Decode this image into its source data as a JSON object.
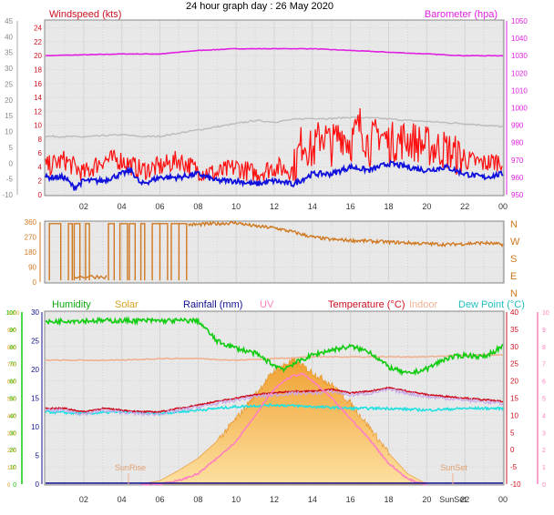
{
  "header": {
    "title": "24 hour graph day : 26 May 2020"
  },
  "colors": {
    "wind_avg": "#1010dd",
    "wind_gust": "#ff1010",
    "temp_gray": "#bbbbbb",
    "barometer": "#e020e0",
    "direction": "#d07820",
    "humidity": "#10cc10",
    "solar": "#f5b040",
    "rainfall": "#101090",
    "uv": "#ff80c0",
    "temperature": "#cc1020",
    "indoor": "#f0b090",
    "dewpoint": "#20e0e0",
    "grid": "#d8d8d8",
    "panel_bg": "#e8e8e8"
  },
  "chart_data": [
    {
      "type": "line",
      "panel": "wind",
      "x_ticks": [
        "02",
        "04",
        "06",
        "08",
        "10",
        "12",
        "14",
        "16",
        "18",
        "20",
        "22",
        "00"
      ],
      "left_axis": {
        "label": "Windspeed (kts)",
        "ticks": [
          "24",
          "22",
          "20",
          "18",
          "16",
          "14",
          "12",
          "10",
          "8",
          "6",
          "4",
          "2",
          "0"
        ],
        "ylim": [
          0,
          25
        ]
      },
      "outer_left_axis": {
        "ticks": [
          "45",
          "40",
          "35",
          "30",
          "25",
          "20",
          "15",
          "10",
          "5",
          "0",
          "-5",
          "-10"
        ],
        "ylim": [
          -10,
          45
        ]
      },
      "right_axis": {
        "label": "Barometer (hpa)",
        "ticks": [
          "1050",
          "1040",
          "1030",
          "1020",
          "1010",
          "1000",
          "990",
          "980",
          "970",
          "960",
          "950"
        ],
        "ylim": [
          950,
          1050
        ]
      },
      "series": [
        {
          "name": "Barometer",
          "hour": [
            0,
            4,
            6,
            8,
            10,
            12,
            14,
            16,
            18,
            20,
            22,
            24
          ],
          "values": [
            1030,
            1031,
            1031,
            1033,
            1034,
            1034,
            1034,
            1033,
            1032,
            1031,
            1030,
            1030
          ]
        },
        {
          "hour": [
            0,
            2,
            4,
            5,
            6,
            7,
            8,
            9,
            10,
            11,
            12,
            13,
            14,
            15,
            16,
            17,
            18,
            19,
            20,
            21,
            22,
            23,
            24
          ],
          "values": [
            8.5,
            8.3,
            9,
            8.4,
            8.5,
            9.5,
            10.5,
            11.5,
            12.5,
            13.5,
            13,
            13.8,
            14.2,
            14.1,
            14.5,
            14.3,
            14,
            13.5,
            13.2,
            12.8,
            12.5,
            12,
            11.5
          ]
        },
        {
          "name": "Gust",
          "hour": [
            0,
            1,
            2,
            3,
            4,
            5,
            6,
            7,
            8,
            9,
            10,
            11,
            12,
            13,
            13.5,
            14,
            14.5,
            15,
            15.5,
            16,
            16.5,
            17,
            17.5,
            18,
            19,
            20,
            21,
            22,
            23,
            24
          ],
          "values": [
            4,
            5,
            3,
            5,
            5,
            3.5,
            4,
            5,
            3.5,
            3,
            4,
            3,
            4,
            3.5,
            8,
            6,
            9,
            7,
            9,
            7.5,
            10,
            7,
            9,
            7.5,
            8,
            7,
            6.5,
            5,
            4.5,
            5
          ]
        },
        {
          "name": "Average",
          "hour": [
            0,
            1,
            1.5,
            2,
            3,
            4,
            4.5,
            5,
            6,
            7,
            8,
            9,
            10,
            11,
            12,
            13,
            14,
            15,
            16,
            17,
            18,
            19,
            20,
            21,
            22,
            23,
            24
          ],
          "values": [
            2.5,
            2.5,
            1,
            2,
            2,
            3,
            3.5,
            1.5,
            2.5,
            2.5,
            3,
            2,
            2,
            1.5,
            2,
            1.5,
            3,
            3,
            4,
            3.5,
            4.5,
            4,
            3.5,
            4,
            3,
            2.5,
            3
          ]
        }
      ]
    },
    {
      "type": "line",
      "panel": "direction",
      "left_axis": {
        "ticks": [
          "360",
          "270",
          "180",
          "90",
          "0"
        ],
        "ylim": [
          0,
          360
        ]
      },
      "right_axis": {
        "ticks": [
          "N",
          "W",
          "S",
          "E",
          "N"
        ]
      },
      "series": [
        {
          "name": "Direction",
          "hour": [
            7.5,
            8,
            9,
            10,
            11,
            12,
            13,
            14,
            15,
            16,
            17,
            18,
            19,
            20,
            21,
            22,
            23,
            24
          ],
          "values": [
            345,
            345,
            350,
            355,
            335,
            325,
            300,
            270,
            255,
            250,
            245,
            240,
            235,
            230,
            225,
            230,
            235,
            225
          ]
        }
      ]
    },
    {
      "type": "line",
      "panel": "temperature",
      "x_ticks": [
        "02",
        "04",
        "06",
        "08",
        "10",
        "12",
        "14",
        "16",
        "18",
        "20",
        "22",
        "00"
      ],
      "legend": [
        "Humidity",
        "Solar",
        "Rainfall (mm)",
        "UV",
        "Temperature (°C)",
        "Indoor",
        "Dew Point (°C)"
      ],
      "annotations": [
        "SunRise",
        "SunSet",
        "SunSet"
      ],
      "humidity_axis": {
        "ticks": [
          "100",
          "90",
          "80",
          "70",
          "60",
          "50",
          "40",
          "30",
          "20",
          "10",
          "0"
        ],
        "ylim": [
          0,
          100
        ]
      },
      "solar_axis": {
        "ticks": [
          "1000",
          "900",
          "800",
          "700",
          "600",
          "500",
          "400",
          "300",
          "200",
          "100",
          "0"
        ],
        "ylim": [
          0,
          1000
        ]
      },
      "rainfall_axis": {
        "ticks": [
          "30",
          "25",
          "20",
          "15",
          "10",
          "5",
          "0"
        ],
        "ylim": [
          0,
          30
        ]
      },
      "temperature_axis": {
        "ticks": [
          "40",
          "35",
          "30",
          "25",
          "20",
          "15",
          "10",
          "5",
          "0",
          "-5",
          "-10"
        ],
        "ylim": [
          -10,
          40
        ]
      },
      "uv_axis": {
        "ticks": [
          "10",
          "9",
          "8",
          "7",
          "6",
          "5",
          "4",
          "3",
          "2",
          "1",
          "0"
        ],
        "ylim": [
          0,
          10
        ]
      },
      "series": [
        {
          "name": "Humidity",
          "hour": [
            0,
            1,
            2,
            4,
            5,
            6,
            7,
            8,
            9,
            10,
            11,
            12,
            12.5,
            13,
            14,
            15,
            16,
            17,
            18,
            19,
            20,
            21,
            22,
            23,
            24
          ],
          "values": [
            94,
            95,
            95,
            95,
            95,
            95,
            95,
            95,
            83,
            79,
            76,
            69,
            67,
            70,
            75,
            78,
            80,
            77,
            68,
            64,
            67,
            73,
            75,
            74,
            80
          ]
        },
        {
          "name": "Solar",
          "hour": [
            0,
            5,
            6,
            7,
            8,
            9,
            10,
            11,
            12,
            13,
            14,
            15,
            16,
            17,
            18,
            19,
            20,
            24
          ],
          "values": [
            0,
            0,
            20,
            80,
            150,
            250,
            380,
            520,
            660,
            720,
            650,
            580,
            470,
            330,
            180,
            60,
            0,
            0
          ]
        },
        {
          "name": "Temperature",
          "hour": [
            0,
            1,
            2,
            3,
            4,
            5,
            6,
            7,
            8,
            9,
            10,
            11,
            12,
            13,
            14,
            15,
            16,
            17,
            18,
            19,
            20,
            21,
            22,
            23,
            24
          ],
          "values": [
            12,
            12,
            11,
            12,
            11.5,
            11,
            11,
            12,
            13,
            14,
            15,
            16,
            16.5,
            17,
            17,
            17.5,
            16.5,
            17,
            18,
            17,
            16,
            15.5,
            15,
            14.5,
            14
          ]
        },
        {
          "name": "Indoor",
          "hour": [
            0,
            2,
            4,
            6,
            8,
            10,
            12,
            14,
            16,
            18,
            20,
            22,
            24
          ],
          "values": [
            26,
            26,
            26,
            26.5,
            26.5,
            26,
            26.5,
            27,
            27,
            27,
            27,
            27.5,
            27.5
          ]
        },
        {
          "name": "Dew Point",
          "hour": [
            0,
            2,
            4,
            6,
            8,
            10,
            12,
            14,
            16,
            18,
            20,
            22,
            24
          ],
          "values": [
            11,
            10.5,
            11,
            10.5,
            11.5,
            12.5,
            13,
            12.5,
            12,
            12,
            11.5,
            12,
            12
          ]
        },
        {
          "name": "UV",
          "hour": [
            5,
            6,
            7,
            8,
            9,
            10,
            11,
            11.5,
            12,
            12.5,
            13,
            13.5,
            14,
            15,
            16,
            17,
            18,
            19,
            19.5,
            20
          ],
          "values": [
            0,
            0,
            0.2,
            0.6,
            1.5,
            2.5,
            4,
            4.8,
            5.5,
            6,
            6.3,
            6.4,
            6,
            5,
            3.8,
            2.6,
            1.2,
            0.3,
            0.1,
            0
          ]
        }
      ]
    }
  ]
}
